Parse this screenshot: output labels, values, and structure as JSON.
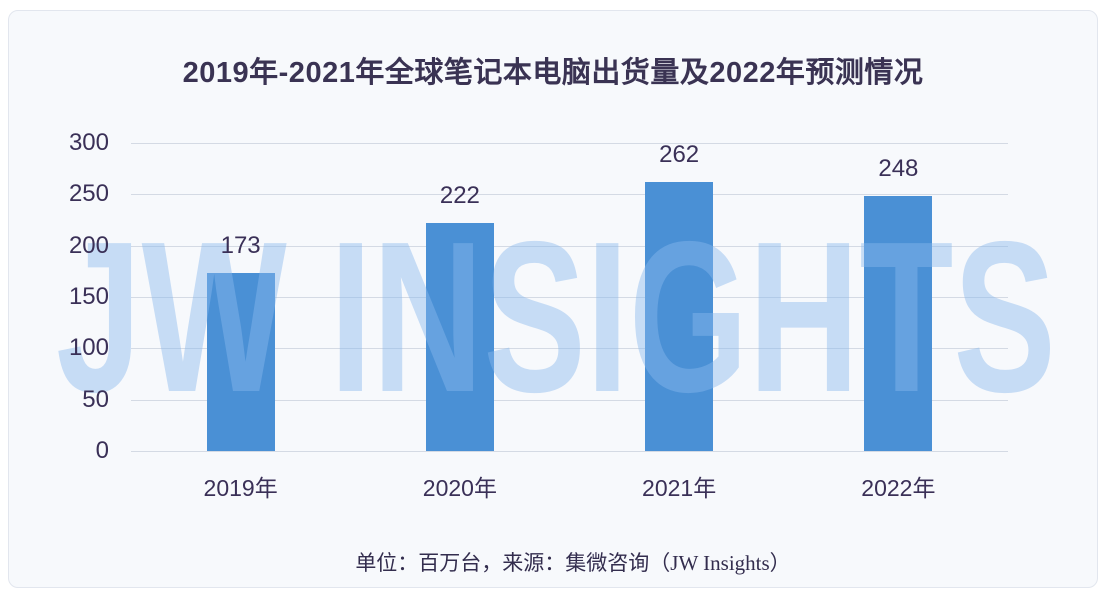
{
  "watermark": "JW INSIGHTS",
  "source_note": "单位：百万台，来源：集微咨询（JW Insights）",
  "chart_data": {
    "type": "bar",
    "title": "2019年-2021年全球笔记本电脑出货量及2022年预测情况",
    "categories": [
      "2019年",
      "2020年",
      "2021年",
      "2022年"
    ],
    "values": [
      173,
      222,
      262,
      248
    ],
    "yticks": [
      0,
      50,
      100,
      150,
      200,
      250,
      300
    ],
    "ylim": [
      0,
      300
    ],
    "grid": true,
    "legend": "none",
    "xlabel": "",
    "ylabel": "",
    "bar_color": "#4a90d5",
    "label_color": "#3a3057",
    "grid_color": "#d4dae4",
    "watermark_color": "#8ab7ee"
  }
}
